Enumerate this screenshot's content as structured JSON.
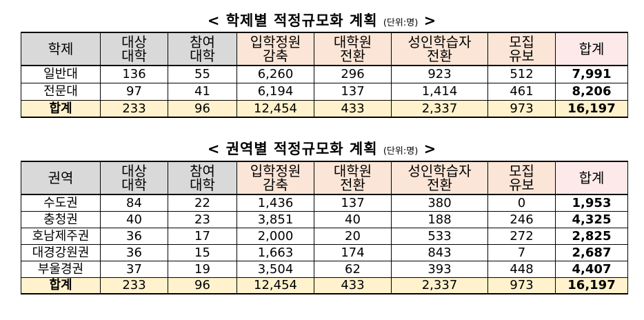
{
  "table1": {
    "title": "< 학제별 적정규모화 계획",
    "unit": "(단위:명)",
    "close": ">",
    "headers": [
      [
        "학제"
      ],
      [
        "대상",
        "대학"
      ],
      [
        "참여",
        "대학"
      ],
      [
        "입학정원",
        "감축"
      ],
      [
        "대학원",
        "전환"
      ],
      [
        "성인학습자",
        "전환"
      ],
      [
        "모집",
        "유보"
      ],
      [
        "합계"
      ]
    ],
    "rows": [
      [
        "일반대",
        "136",
        "55",
        "6,260",
        "296",
        "923",
        "512",
        "7,991"
      ],
      [
        "전문대",
        "97",
        "41",
        "6,194",
        "137",
        "1,414",
        "461",
        "8,206"
      ],
      [
        "합계",
        "233",
        "96",
        "12,454",
        "433",
        "2,337",
        "973",
        "16,197"
      ]
    ]
  },
  "table2": {
    "title": "< 권역별 적정규모화 계획",
    "unit": "(단위:명)",
    "close": ">",
    "headers": [
      [
        "권역"
      ],
      [
        "대상",
        "대학"
      ],
      [
        "참여",
        "대학"
      ],
      [
        "입학정원",
        "감축"
      ],
      [
        "대학원",
        "전환"
      ],
      [
        "성인학습자",
        "전환"
      ],
      [
        "모집",
        "유보"
      ],
      [
        "합계"
      ]
    ],
    "rows": [
      [
        "수도권",
        "84",
        "22",
        "1,436",
        "137",
        "380",
        "0",
        "1,953"
      ],
      [
        "충청권",
        "40",
        "23",
        "3,851",
        "40",
        "188",
        "246",
        "4,325"
      ],
      [
        "호남제주권",
        "36",
        "17",
        "2,000",
        "20",
        "533",
        "272",
        "2,825"
      ],
      [
        "대경강원권",
        "36",
        "15",
        "1,663",
        "174",
        "843",
        "7",
        "2,687"
      ],
      [
        "부울경권",
        "37",
        "19",
        "3,504",
        "62",
        "393",
        "448",
        "4,407"
      ],
      [
        "합계",
        "233",
        "96",
        "12,454",
        "433",
        "2,337",
        "973",
        "16,197"
      ]
    ]
  },
  "colors": {
    "header_gray": "#d9d9d9",
    "header_peach": "#fbe5d6",
    "header_pink": "#fde9e9",
    "total_row": "#fff2cc"
  }
}
